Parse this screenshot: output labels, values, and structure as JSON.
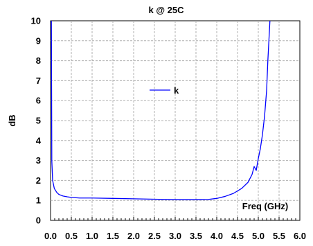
{
  "chart_data": {
    "type": "line",
    "title": "k @ 25C",
    "xlabel": "",
    "ylabel": "dB",
    "annotation": "Freq (GHz)",
    "xlim": [
      0.0,
      6.0
    ],
    "ylim": [
      0,
      10
    ],
    "x_ticks": [
      "0.0",
      "0.5",
      "1.0",
      "1.5",
      "2.0",
      "2.5",
      "3.0",
      "3.5",
      "4.0",
      "4.5",
      "5.0",
      "5.5",
      "6.0"
    ],
    "y_ticks": [
      "0",
      "1",
      "2",
      "3",
      "4",
      "5",
      "6",
      "7",
      "8",
      "9",
      "10"
    ],
    "grid": true,
    "legend_position": "center",
    "series": [
      {
        "name": "k",
        "color": "#0000ff",
        "x": [
          0.02,
          0.03,
          0.05,
          0.07,
          0.09,
          0.12,
          0.15,
          0.2,
          0.3,
          0.4,
          0.5,
          0.7,
          1.0,
          1.5,
          2.0,
          2.5,
          3.0,
          3.5,
          3.8,
          4.0,
          4.2,
          4.4,
          4.6,
          4.75,
          4.85,
          4.9,
          4.95,
          5.0,
          5.05,
          5.1,
          5.15,
          5.2,
          5.23,
          5.26,
          5.28
        ],
        "y": [
          10.0,
          3.0,
          2.0,
          1.8,
          1.6,
          1.5,
          1.4,
          1.3,
          1.22,
          1.18,
          1.15,
          1.12,
          1.12,
          1.1,
          1.08,
          1.06,
          1.04,
          1.04,
          1.05,
          1.1,
          1.2,
          1.35,
          1.6,
          1.9,
          2.3,
          2.7,
          2.5,
          3.1,
          3.6,
          4.3,
          5.2,
          6.5,
          8.0,
          9.2,
          10.0
        ]
      }
    ]
  }
}
